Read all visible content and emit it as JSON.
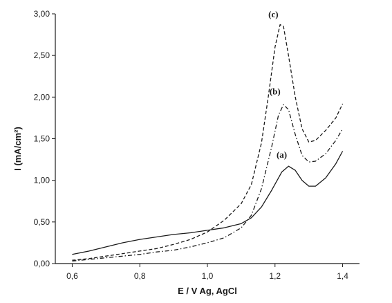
{
  "chart_data": {
    "type": "line",
    "xlabel": "E / V  Ag, AgCl",
    "ylabel": "I (mA/cm²)",
    "xlim": [
      0.55,
      1.45
    ],
    "ylim": [
      0.0,
      3.0
    ],
    "x_ticks": [
      0.6,
      0.8,
      1.0,
      1.2,
      1.4
    ],
    "x_tick_labels": [
      "0,6",
      "0,8",
      "1,0",
      "1,2",
      "1,4"
    ],
    "y_ticks": [
      0.0,
      0.5,
      1.0,
      1.5,
      2.0,
      2.5,
      3.0
    ],
    "y_tick_labels": [
      "0,00",
      "0,50",
      "1,00",
      "1,50",
      "2,00",
      "2,50",
      "3,00"
    ],
    "grid": false,
    "line_color": "#1a1a1a",
    "series": [
      {
        "name": "(a)",
        "style": "solid",
        "label_at": [
          1.22,
          1.27
        ],
        "points": [
          [
            0.6,
            0.11
          ],
          [
            0.65,
            0.15
          ],
          [
            0.7,
            0.2
          ],
          [
            0.75,
            0.25
          ],
          [
            0.8,
            0.29
          ],
          [
            0.85,
            0.32
          ],
          [
            0.9,
            0.35
          ],
          [
            0.95,
            0.37
          ],
          [
            1.0,
            0.4
          ],
          [
            1.05,
            0.43
          ],
          [
            1.1,
            0.48
          ],
          [
            1.13,
            0.55
          ],
          [
            1.16,
            0.68
          ],
          [
            1.19,
            0.88
          ],
          [
            1.22,
            1.1
          ],
          [
            1.24,
            1.17
          ],
          [
            1.26,
            1.12
          ],
          [
            1.28,
            1.0
          ],
          [
            1.3,
            0.93
          ],
          [
            1.32,
            0.93
          ],
          [
            1.35,
            1.03
          ],
          [
            1.38,
            1.2
          ],
          [
            1.4,
            1.35
          ]
        ]
      },
      {
        "name": "(b)",
        "style": "dashdot",
        "label_at": [
          1.2,
          2.03
        ],
        "points": [
          [
            0.6,
            0.03
          ],
          [
            0.65,
            0.05
          ],
          [
            0.7,
            0.07
          ],
          [
            0.75,
            0.09
          ],
          [
            0.8,
            0.11
          ],
          [
            0.85,
            0.14
          ],
          [
            0.9,
            0.16
          ],
          [
            0.95,
            0.2
          ],
          [
            1.0,
            0.25
          ],
          [
            1.05,
            0.31
          ],
          [
            1.1,
            0.43
          ],
          [
            1.13,
            0.58
          ],
          [
            1.16,
            0.9
          ],
          [
            1.19,
            1.4
          ],
          [
            1.21,
            1.78
          ],
          [
            1.225,
            1.91
          ],
          [
            1.24,
            1.85
          ],
          [
            1.26,
            1.55
          ],
          [
            1.28,
            1.3
          ],
          [
            1.3,
            1.22
          ],
          [
            1.32,
            1.23
          ],
          [
            1.35,
            1.32
          ],
          [
            1.38,
            1.48
          ],
          [
            1.4,
            1.62
          ]
        ]
      },
      {
        "name": "(c)",
        "style": "dashed",
        "label_at": [
          1.195,
          2.96
        ],
        "points": [
          [
            0.6,
            0.04
          ],
          [
            0.65,
            0.06
          ],
          [
            0.7,
            0.09
          ],
          [
            0.75,
            0.12
          ],
          [
            0.8,
            0.15
          ],
          [
            0.85,
            0.18
          ],
          [
            0.9,
            0.23
          ],
          [
            0.95,
            0.29
          ],
          [
            1.0,
            0.38
          ],
          [
            1.05,
            0.52
          ],
          [
            1.1,
            0.72
          ],
          [
            1.13,
            0.95
          ],
          [
            1.16,
            1.45
          ],
          [
            1.18,
            2.0
          ],
          [
            1.2,
            2.6
          ],
          [
            1.215,
            2.87
          ],
          [
            1.225,
            2.85
          ],
          [
            1.24,
            2.5
          ],
          [
            1.26,
            2.0
          ],
          [
            1.28,
            1.62
          ],
          [
            1.3,
            1.46
          ],
          [
            1.32,
            1.48
          ],
          [
            1.35,
            1.6
          ],
          [
            1.38,
            1.75
          ],
          [
            1.4,
            1.92
          ]
        ]
      }
    ]
  }
}
